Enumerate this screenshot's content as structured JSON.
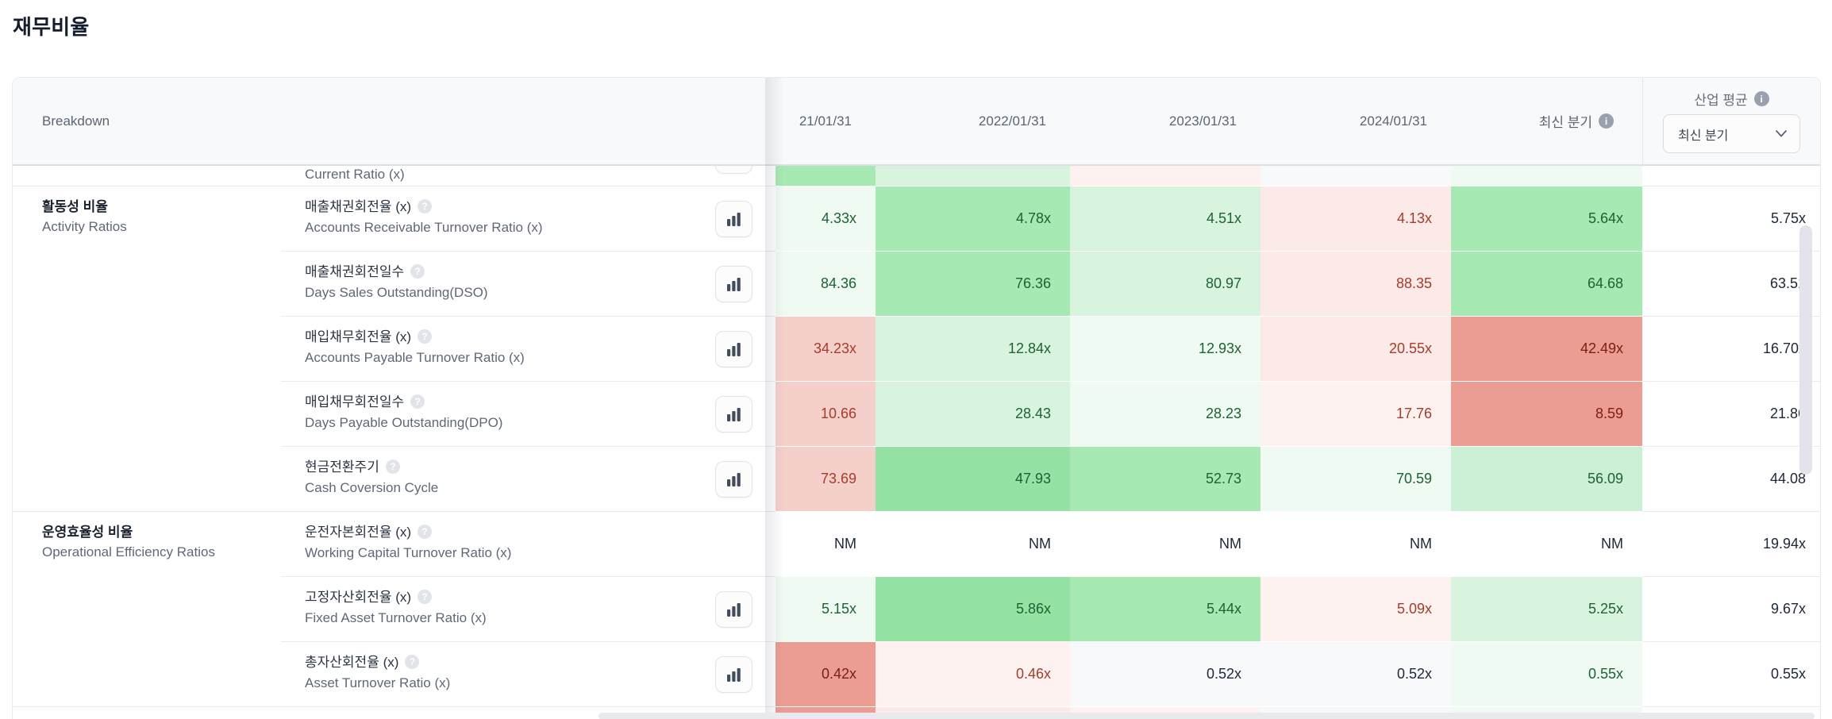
{
  "title": "재무비율",
  "header": {
    "breakdown": "Breakdown",
    "date_columns": [
      "21/01/31",
      "2022/01/31",
      "2023/01/31",
      "2024/01/31"
    ],
    "latest_quarter_label": "최신 분기",
    "industry_avg_label": "산업 평균",
    "industry_dropdown_value": "최신 분기",
    "info_icon_glyph": "i",
    "help_icon_glyph": "?"
  },
  "partial_top_row": {
    "label_en": "Current Ratio (x)",
    "cell_styles": [
      "gm",
      "gl",
      "rx",
      "n",
      "gx"
    ]
  },
  "partial_bottom_row": {
    "cell_styles": [
      "rs",
      "rl",
      "rx",
      "n",
      "gx"
    ]
  },
  "rows": [
    {
      "section_ko": "활동성 비율",
      "section_en": "Activity Ratios",
      "section_start": true,
      "ko": "매출채권회전율 (x)",
      "en": "Accounts Receivable Turnover Ratio (x)",
      "chart_button": true,
      "cells": [
        {
          "v": "4.33x",
          "bg": "gx",
          "t": "g"
        },
        {
          "v": "4.78x",
          "bg": "gm",
          "t": "g"
        },
        {
          "v": "4.51x",
          "bg": "gl",
          "t": "g"
        },
        {
          "v": "4.13x",
          "bg": "rl",
          "t": "r"
        },
        {
          "v": "5.64x",
          "bg": "gm",
          "t": "g"
        }
      ],
      "industry": "5.75x"
    },
    {
      "ko": "매출채권회전일수",
      "en": "Days Sales Outstanding(DSO)",
      "chart_button": true,
      "cells": [
        {
          "v": "84.36",
          "bg": "gx",
          "t": "g"
        },
        {
          "v": "76.36",
          "bg": "gm",
          "t": "g"
        },
        {
          "v": "80.97",
          "bg": "gl",
          "t": "g"
        },
        {
          "v": "88.35",
          "bg": "rl",
          "t": "r"
        },
        {
          "v": "64.68",
          "bg": "gm",
          "t": "g"
        }
      ],
      "industry": "63.51"
    },
    {
      "ko": "매입채무회전율 (x)",
      "en": "Accounts Payable Turnover Ratio (x)",
      "chart_button": true,
      "cells": [
        {
          "v": "34.23x",
          "bg": "rm",
          "t": "r"
        },
        {
          "v": "12.84x",
          "bg": "gl",
          "t": "g"
        },
        {
          "v": "12.93x",
          "bg": "gx",
          "t": "g"
        },
        {
          "v": "20.55x",
          "bg": "rl",
          "t": "r"
        },
        {
          "v": "42.49x",
          "bg": "rs",
          "t": "m"
        }
      ],
      "industry": "16.70x"
    },
    {
      "ko": "매입채무회전일수",
      "en": "Days Payable Outstanding(DPO)",
      "chart_button": true,
      "cells": [
        {
          "v": "10.66",
          "bg": "rm",
          "t": "r"
        },
        {
          "v": "28.43",
          "bg": "gl",
          "t": "g"
        },
        {
          "v": "28.23",
          "bg": "gx",
          "t": "g"
        },
        {
          "v": "17.76",
          "bg": "rx",
          "t": "r"
        },
        {
          "v": "8.59",
          "bg": "rs",
          "t": "m"
        }
      ],
      "industry": "21.86"
    },
    {
      "ko": "현금전환주기",
      "en": "Cash Coversion Cycle",
      "chart_button": true,
      "cells": [
        {
          "v": "73.69",
          "bg": "rm",
          "t": "r"
        },
        {
          "v": "47.93",
          "bg": "gs",
          "t": "g"
        },
        {
          "v": "52.73",
          "bg": "gm",
          "t": "g"
        },
        {
          "v": "70.59",
          "bg": "gx",
          "t": "g"
        },
        {
          "v": "56.09",
          "bg": "gl2",
          "t": "g"
        }
      ],
      "industry": "44.08"
    },
    {
      "section_ko": "운영효율성 비율",
      "section_en": "Operational Efficiency Ratios",
      "section_start": true,
      "ko": "운전자본회전율 (x)",
      "en": "Working Capital Turnover Ratio (x)",
      "chart_button": false,
      "cells": [
        {
          "v": "NM",
          "bg": "w",
          "t": "n"
        },
        {
          "v": "NM",
          "bg": "w",
          "t": "n"
        },
        {
          "v": "NM",
          "bg": "w",
          "t": "n"
        },
        {
          "v": "NM",
          "bg": "w",
          "t": "n"
        },
        {
          "v": "NM",
          "bg": "w",
          "t": "n"
        }
      ],
      "industry": "19.94x"
    },
    {
      "ko": "고정자산회전율 (x)",
      "en": "Fixed Asset Turnover Ratio (x)",
      "chart_button": true,
      "cells": [
        {
          "v": "5.15x",
          "bg": "gx",
          "t": "g"
        },
        {
          "v": "5.86x",
          "bg": "gs",
          "t": "g"
        },
        {
          "v": "5.44x",
          "bg": "gm",
          "t": "g"
        },
        {
          "v": "5.09x",
          "bg": "rx",
          "t": "r"
        },
        {
          "v": "5.25x",
          "bg": "gl",
          "t": "g"
        }
      ],
      "industry": "9.67x"
    },
    {
      "ko": "총자산회전율 (x)",
      "en": "Asset Turnover Ratio (x)",
      "chart_button": true,
      "cells": [
        {
          "v": "0.42x",
          "bg": "rs",
          "t": "m"
        },
        {
          "v": "0.46x",
          "bg": "rx",
          "t": "r"
        },
        {
          "v": "0.52x",
          "bg": "n",
          "t": "n"
        },
        {
          "v": "0.52x",
          "bg": "n",
          "t": "n"
        },
        {
          "v": "0.55x",
          "bg": "gx",
          "t": "g"
        }
      ],
      "industry": "0.55x"
    }
  ],
  "colors": {
    "gs": "#94e3a4",
    "gm": "#a6e9b3",
    "gl": "#d8f4de",
    "gl2": "#cbf0d5",
    "gx": "#effaf2",
    "rs": "#eb9d94",
    "rm": "#f5d0cb",
    "rl": "#fbeae7",
    "rx": "#fdf2f0",
    "n": "#f7f9fa",
    "w": "#ffffff",
    "t_g": "#1e6234",
    "t_r": "#a83b2a",
    "t_m": "#7d1d12",
    "t_n": "#1d2838"
  }
}
